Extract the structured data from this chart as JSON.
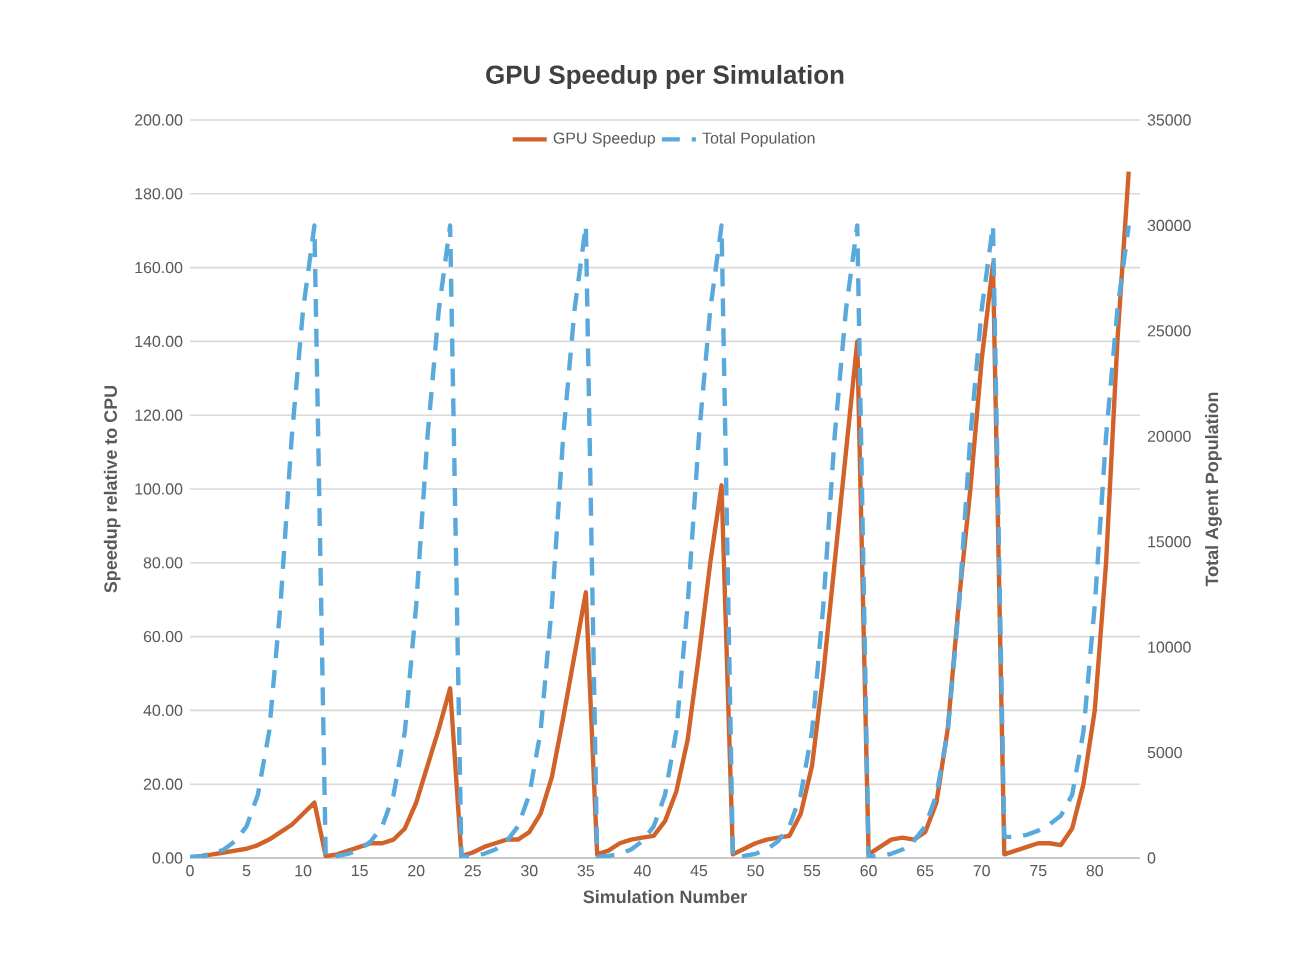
{
  "chart_data": {
    "type": "line",
    "title": "GPU Speedup per Simulation",
    "xlabel": "Simulation Number",
    "ylabel": "Speedup relative to CPU",
    "y2label": "Total Agent Population",
    "x": [
      0,
      1,
      2,
      3,
      4,
      5,
      6,
      7,
      8,
      9,
      10,
      11,
      12,
      13,
      14,
      15,
      16,
      17,
      18,
      19,
      20,
      21,
      22,
      23,
      24,
      25,
      26,
      27,
      28,
      29,
      30,
      31,
      32,
      33,
      34,
      35,
      36,
      37,
      38,
      39,
      40,
      41,
      42,
      43,
      44,
      45,
      46,
      47,
      48,
      49,
      50,
      51,
      52,
      53,
      54,
      55,
      56,
      57,
      58,
      59,
      60,
      61,
      62,
      63,
      64,
      65,
      66,
      67,
      68,
      69,
      70,
      71,
      72,
      73,
      74,
      75,
      76,
      77,
      78,
      79,
      80,
      81,
      82,
      83
    ],
    "series": [
      {
        "name": "GPU Speedup",
        "color": "#d0622a",
        "line_style": "solid",
        "values": [
          0,
          0.5,
          1,
          1.5,
          2,
          2.5,
          3.5,
          5,
          7,
          9,
          12,
          15,
          0.5,
          1,
          2,
          3,
          4,
          4,
          5,
          8,
          15,
          25,
          35,
          46,
          0.5,
          1.5,
          3,
          4,
          5,
          5,
          7,
          12,
          22,
          38,
          55,
          72,
          1,
          2,
          4,
          5,
          5.5,
          6,
          10,
          18,
          32,
          55,
          80,
          101,
          1,
          2.5,
          4,
          5,
          5.5,
          6,
          12,
          25,
          50,
          80,
          110,
          140,
          1,
          3,
          5,
          5.5,
          5,
          7,
          15,
          35,
          70,
          100,
          135,
          161,
          1,
          2,
          3,
          4,
          4,
          3.5,
          8,
          20,
          40,
          80,
          140,
          186
        ]
      },
      {
        "name": "Total Population",
        "color": "#5aa9dc",
        "line_style": "dashed",
        "axis": "y2",
        "values": [
          50,
          100,
          200,
          400,
          800,
          1500,
          3000,
          6000,
          12000,
          20000,
          26000,
          30000,
          50,
          100,
          200,
          400,
          800,
          1500,
          3000,
          6000,
          12000,
          20000,
          26000,
          30000,
          50,
          100,
          200,
          400,
          800,
          1500,
          3000,
          6000,
          12000,
          20000,
          26000,
          30000,
          50,
          100,
          200,
          400,
          800,
          1500,
          3000,
          6000,
          12000,
          20000,
          26000,
          30000,
          50,
          100,
          200,
          400,
          800,
          1500,
          3000,
          6000,
          12000,
          20000,
          26000,
          30000,
          50,
          100,
          200,
          400,
          800,
          1500,
          3000,
          6000,
          12000,
          20000,
          26000,
          30000,
          1000,
          1000,
          1100,
          1300,
          1600,
          2000,
          3000,
          6000,
          12000,
          20000,
          26000,
          30000
        ]
      }
    ],
    "xlim": [
      0,
      84
    ],
    "xticks": [
      0,
      5,
      10,
      15,
      20,
      25,
      30,
      35,
      40,
      45,
      50,
      55,
      60,
      65,
      70,
      75,
      80
    ],
    "ylim": [
      0,
      200
    ],
    "yticks": [
      {
        "value": 0,
        "label": "0.00"
      },
      {
        "value": 20,
        "label": "20.00"
      },
      {
        "value": 40,
        "label": "40.00"
      },
      {
        "value": 60,
        "label": "60.00"
      },
      {
        "value": 80,
        "label": "80.00"
      },
      {
        "value": 100,
        "label": "100.00"
      },
      {
        "value": 120,
        "label": "120.00"
      },
      {
        "value": 140,
        "label": "140.00"
      },
      {
        "value": 160,
        "label": "160.00"
      },
      {
        "value": 180,
        "label": "180.00"
      },
      {
        "value": 200,
        "label": "200.00"
      }
    ],
    "y2lim": [
      0,
      35000
    ],
    "y2ticks": [
      0,
      5000,
      10000,
      15000,
      20000,
      25000,
      30000,
      35000
    ],
    "grid": "y",
    "legend": "top"
  }
}
